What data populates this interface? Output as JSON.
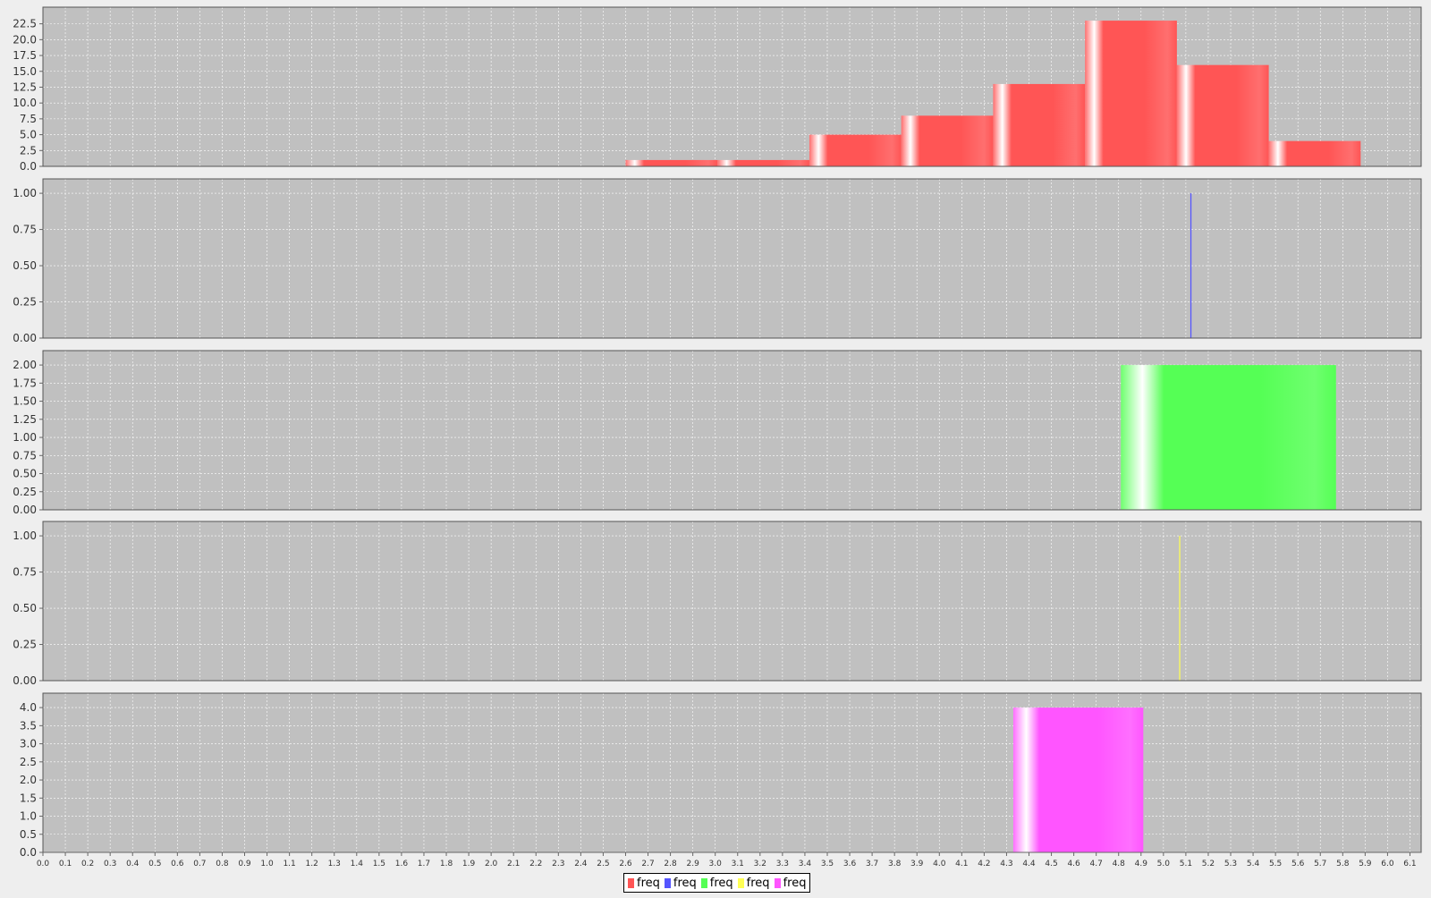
{
  "chart_data": {
    "type": "bar",
    "grid": true,
    "legend_placement": "bottom",
    "x_axis": {
      "min": 0.0,
      "max": 6.15,
      "tick_labels": [
        "0.0",
        "0.1",
        "0.2",
        "0.3",
        "0.4",
        "0.5",
        "0.6",
        "0.7",
        "0.8",
        "0.9",
        "1.0",
        "1.1",
        "1.2",
        "1.3",
        "1.4",
        "1.5",
        "1.6",
        "1.7",
        "1.8",
        "1.9",
        "2.0",
        "2.1",
        "2.2",
        "2.3",
        "2.4",
        "2.5",
        "2.6",
        "2.7",
        "2.8",
        "2.9",
        "3.0",
        "3.1",
        "3.2",
        "3.3",
        "3.4",
        "3.5",
        "3.6",
        "3.7",
        "3.8",
        "3.9",
        "4.0",
        "4.1",
        "4.2",
        "4.3",
        "4.4",
        "4.5",
        "4.6",
        "4.7",
        "4.8",
        "4.9",
        "5.0",
        "5.1",
        "5.2",
        "5.3",
        "5.4",
        "5.5",
        "5.6",
        "5.7",
        "5.8",
        "5.9",
        "6.0",
        "6.1"
      ]
    },
    "panels": [
      {
        "series_name": "freq",
        "color": "#ff5555",
        "ylim": [
          0,
          24
        ],
        "y_ticks": [
          "0.0",
          "2.5",
          "5.0",
          "7.5",
          "10.0",
          "12.5",
          "15.0",
          "17.5",
          "20.0",
          "22.5"
        ],
        "bins": [
          {
            "x0": 2.6,
            "x1": 3.01,
            "value": 1
          },
          {
            "x0": 3.01,
            "x1": 3.42,
            "value": 1
          },
          {
            "x0": 3.42,
            "x1": 3.83,
            "value": 5
          },
          {
            "x0": 3.83,
            "x1": 4.24,
            "value": 8
          },
          {
            "x0": 4.24,
            "x1": 4.65,
            "value": 13
          },
          {
            "x0": 4.65,
            "x1": 5.06,
            "value": 23
          },
          {
            "x0": 5.06,
            "x1": 5.47,
            "value": 16
          },
          {
            "x0": 5.47,
            "x1": 5.88,
            "value": 4
          }
        ]
      },
      {
        "series_name": "freq",
        "color": "#5555ff",
        "ylim": [
          0,
          1.05
        ],
        "y_ticks": [
          "0.00",
          "0.25",
          "0.50",
          "0.75",
          "1.00"
        ],
        "bins": [
          {
            "x0": 5.12,
            "x1": 5.125,
            "value": 1
          }
        ]
      },
      {
        "series_name": "freq",
        "color": "#55ff55",
        "ylim": [
          0,
          2.1
        ],
        "y_ticks": [
          "0.00",
          "0.25",
          "0.50",
          "0.75",
          "1.00",
          "1.25",
          "1.50",
          "1.75",
          "2.00"
        ],
        "bins": [
          {
            "x0": 4.81,
            "x1": 5.77,
            "value": 2
          }
        ]
      },
      {
        "series_name": "freq",
        "color": "#ffff55",
        "ylim": [
          0,
          1.05
        ],
        "y_ticks": [
          "0.00",
          "0.25",
          "0.50",
          "0.75",
          "1.00"
        ],
        "bins": [
          {
            "x0": 5.07,
            "x1": 5.075,
            "value": 1
          }
        ]
      },
      {
        "series_name": "freq",
        "color": "#ff55ff",
        "ylim": [
          0,
          4.2
        ],
        "y_ticks": [
          "0.0",
          "0.5",
          "1.0",
          "1.5",
          "2.0",
          "2.5",
          "3.0",
          "3.5",
          "4.0"
        ],
        "bins": [
          {
            "x0": 4.33,
            "x1": 4.91,
            "value": 4
          }
        ]
      }
    ]
  },
  "legend": {
    "items": [
      {
        "label": "freq",
        "color": "#ff5555"
      },
      {
        "label": "freq",
        "color": "#5555ff"
      },
      {
        "label": "freq",
        "color": "#55ff55"
      },
      {
        "label": "freq",
        "color": "#ffff55"
      },
      {
        "label": "freq",
        "color": "#ff55ff"
      }
    ]
  }
}
